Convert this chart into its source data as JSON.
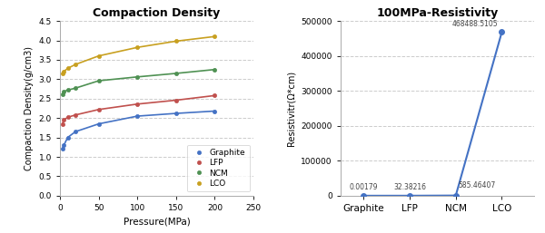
{
  "title1": "Compaction Density",
  "title2": "100MPa-Resistivity",
  "ylabel1": "Compaction Density(g/cm3)",
  "xlabel1": "Pressure(MPa)",
  "ylabel2": "Resistivitr(Ω*cm)",
  "xlim1": [
    0,
    250
  ],
  "ylim1": [
    0,
    4.5
  ],
  "ylim2": [
    0,
    500000
  ],
  "graphite_x": [
    3,
    5,
    10,
    20,
    50,
    100,
    150,
    200
  ],
  "graphite_y": [
    1.2,
    1.3,
    1.5,
    1.65,
    1.85,
    2.05,
    2.12,
    2.18
  ],
  "lfp_x": [
    3,
    5,
    10,
    20,
    50,
    100,
    150,
    200
  ],
  "lfp_y": [
    1.85,
    1.95,
    2.02,
    2.08,
    2.22,
    2.36,
    2.46,
    2.58
  ],
  "ncm_x": [
    3,
    5,
    10,
    20,
    50,
    100,
    150,
    200
  ],
  "ncm_y": [
    2.62,
    2.68,
    2.72,
    2.77,
    2.96,
    3.06,
    3.15,
    3.25
  ],
  "lco_x": [
    3,
    5,
    10,
    20,
    50,
    100,
    150,
    200
  ],
  "lco_y": [
    3.15,
    3.2,
    3.28,
    3.38,
    3.6,
    3.82,
    3.98,
    4.1
  ],
  "resistivity_labels": [
    "Graphite",
    "LFP",
    "NCM",
    "LCO"
  ],
  "resistivity_values": [
    0.00179,
    32.38216,
    585.46407,
    468488.5105
  ],
  "line_color": "#4472c4",
  "graphite_color": "#4472c4",
  "lfp_color": "#c0504d",
  "ncm_color": "#4f9153",
  "lco_color": "#c8a020",
  "bg_color": "#ffffff",
  "fig_bg_color": "#ffffff",
  "grid_color": "#cccccc",
  "yticks1": [
    0,
    0.5,
    1.0,
    1.5,
    2.0,
    2.5,
    3.0,
    3.5,
    4.0,
    4.5
  ],
  "xticks1": [
    0,
    50,
    100,
    150,
    200,
    250
  ],
  "yticks2": [
    0,
    100000,
    200000,
    300000,
    400000,
    500000
  ],
  "series_names": [
    "Graphite",
    "LFP",
    "NCM",
    "LCO"
  ]
}
